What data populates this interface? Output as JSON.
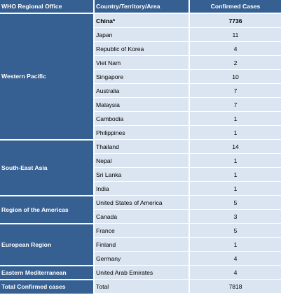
{
  "headers": {
    "office": "WHO Regional Office",
    "country": "Country/Territory/Area",
    "cases": "Confirmed Cases"
  },
  "regions": [
    {
      "office": "Western Pacific",
      "rows": [
        {
          "country": "China*",
          "cases": "7736"
        },
        {
          "country": "Japan",
          "cases": "11"
        },
        {
          "country": "Republic of Korea",
          "cases": "4"
        },
        {
          "country": "Viet Nam",
          "cases": "2"
        },
        {
          "country": "Singapore",
          "cases": "10"
        },
        {
          "country": "Australia",
          "cases": "7"
        },
        {
          "country": "Malaysia",
          "cases": "7"
        },
        {
          "country": "Cambodia",
          "cases": "1"
        },
        {
          "country": "Philippines",
          "cases": "1"
        }
      ]
    },
    {
      "office": "South-East Asia",
      "rows": [
        {
          "country": "Thailand",
          "cases": "14"
        },
        {
          "country": "Nepal",
          "cases": "1"
        },
        {
          "country": "Sri Lanka",
          "cases": "1"
        },
        {
          "country": "India",
          "cases": "1"
        }
      ]
    },
    {
      "office": "Region of the Americas",
      "rows": [
        {
          "country": "United States of America",
          "cases": "5"
        },
        {
          "country": "Canada",
          "cases": "3"
        }
      ]
    },
    {
      "office": "European Region",
      "rows": [
        {
          "country": "France",
          "cases": "5"
        },
        {
          "country": "Finland",
          "cases": "1"
        },
        {
          "country": "Germany",
          "cases": "4"
        }
      ]
    },
    {
      "office": "Eastern Mediterranean",
      "rows": [
        {
          "country": "United Arab Emirates",
          "cases": "4"
        }
      ]
    }
  ],
  "total": {
    "office": "Total Confirmed cases",
    "country": "Total",
    "cases": "7818"
  }
}
